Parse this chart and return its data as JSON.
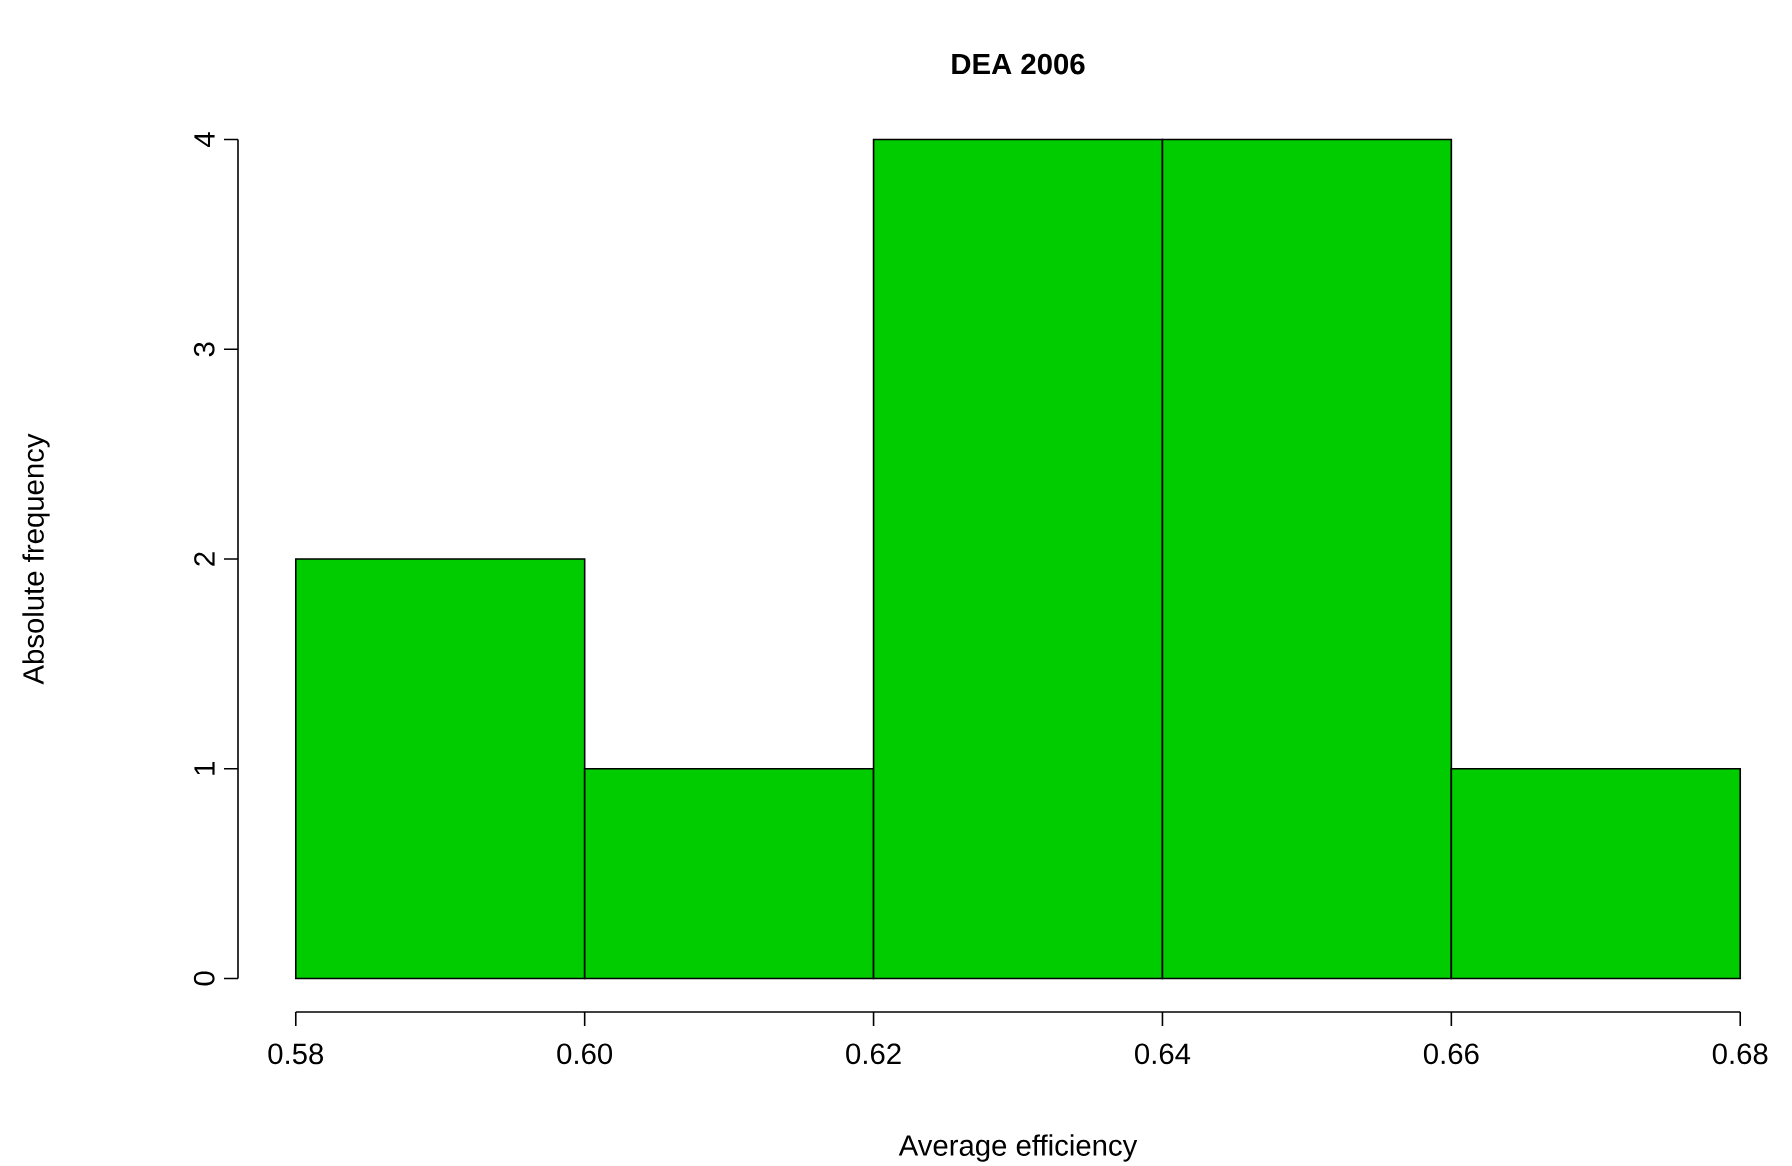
{
  "chart_data": {
    "type": "histogram",
    "title": "DEA 2006",
    "xlabel": "Average efficiency",
    "ylabel": "Absolute frequency",
    "bins": [
      0.58,
      0.6,
      0.62,
      0.64,
      0.66,
      0.68
    ],
    "values": [
      2,
      1,
      4,
      4,
      1
    ],
    "color": "#00cc00",
    "xlim": [
      0.58,
      0.68
    ],
    "ylim": [
      0,
      4
    ],
    "xticks": [
      0.58,
      {
        "value": 0.6,
        "label": "0.60"
      },
      0.62,
      0.64,
      0.66,
      0.68
    ],
    "yticks": [
      0,
      1,
      2,
      3,
      4
    ]
  }
}
